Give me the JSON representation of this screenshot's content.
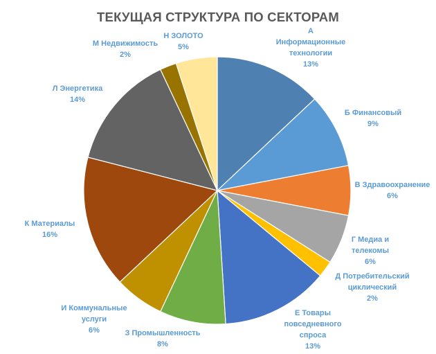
{
  "chart_data": {
    "type": "pie",
    "title": "ТЕКУЩАЯ СТРУКТУРА ПО СЕКТОРАМ",
    "label_color": "#5b9bd5",
    "slices": [
      {
        "letter": "А",
        "name": "Информационные технологии",
        "lines": [
          "А",
          "Информационные",
          "технологии"
        ],
        "value": 13,
        "pct": "13%",
        "color": "#4e80b2"
      },
      {
        "letter": "Б",
        "name": "Финансовый",
        "lines": [
          "Б Финансовый"
        ],
        "value": 9,
        "pct": "9%",
        "color": "#5b9bd5"
      },
      {
        "letter": "В",
        "name": "Здравоохранение",
        "lines": [
          "В Здравоохранение"
        ],
        "value": 6,
        "pct": "6%",
        "color": "#ed7d31"
      },
      {
        "letter": "Г",
        "name": "Медиа и телекомы",
        "lines": [
          "Г Медиа и",
          "телекомы"
        ],
        "value": 6,
        "pct": "6%",
        "color": "#a5a5a5"
      },
      {
        "letter": "Д",
        "name": "Потребительский циклический",
        "lines": [
          "Д Потребительский",
          "циклический"
        ],
        "value": 2,
        "pct": "2%",
        "color": "#ffc000"
      },
      {
        "letter": "Е",
        "name": "Товары повседневного спроса",
        "lines": [
          "Е Товары",
          "повседневного",
          "спроса"
        ],
        "value": 13,
        "pct": "13%",
        "color": "#4472c4"
      },
      {
        "letter": "З",
        "name": "Промышленность",
        "lines": [
          "З Промышленность"
        ],
        "value": 8,
        "pct": "8%",
        "color": "#70ad47"
      },
      {
        "letter": "И",
        "name": "Коммунальные услуги",
        "lines": [
          "И Коммунальные",
          "услуги"
        ],
        "value": 6,
        "pct": "6%",
        "color": "#bf9000"
      },
      {
        "letter": "К",
        "name": "Материалы",
        "lines": [
          "К Материалы"
        ],
        "value": 16,
        "pct": "16%",
        "color": "#9e480e"
      },
      {
        "letter": "Л",
        "name": "Энергетика",
        "lines": [
          "Л Энергетика"
        ],
        "value": 14,
        "pct": "14%",
        "color": "#636363"
      },
      {
        "letter": "М",
        "name": "Недвижимость",
        "lines": [
          "М Недвижимость"
        ],
        "value": 2,
        "pct": "2%",
        "color": "#997300"
      },
      {
        "letter": "Н",
        "name": "ЗОЛОТО",
        "lines": [
          "Н ЗОЛОТО"
        ],
        "value": 5,
        "pct": "5%",
        "color": "#ffe699"
      }
    ]
  }
}
